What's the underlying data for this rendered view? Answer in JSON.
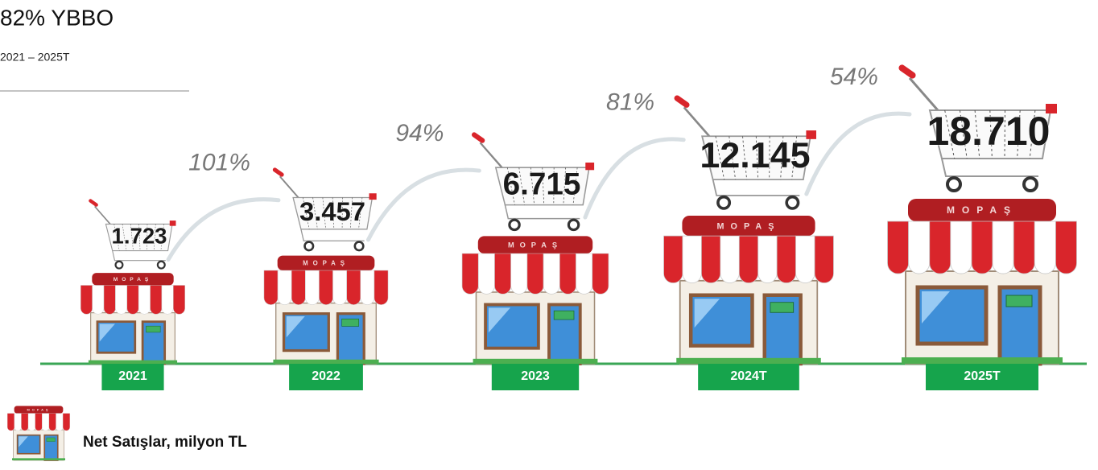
{
  "chart_data": {
    "type": "pictogram",
    "title": "82% YBBO",
    "subtitle": "2021 – 2025T",
    "brand": "MOPAŞ",
    "categories": [
      "2021",
      "2022",
      "2023",
      "2024T",
      "2025T"
    ],
    "values": [
      1723,
      3457,
      6715,
      12145,
      18710
    ],
    "value_labels": [
      "1.723",
      "3.457",
      "6.715",
      "12.145",
      "18.710"
    ],
    "growth": {
      "values": [
        101,
        94,
        81,
        54
      ],
      "value_labels": [
        "101%",
        "94%",
        "81%",
        "54%"
      ]
    },
    "legend": "Net Satışlar, milyon TL",
    "color": "#d9252b"
  }
}
